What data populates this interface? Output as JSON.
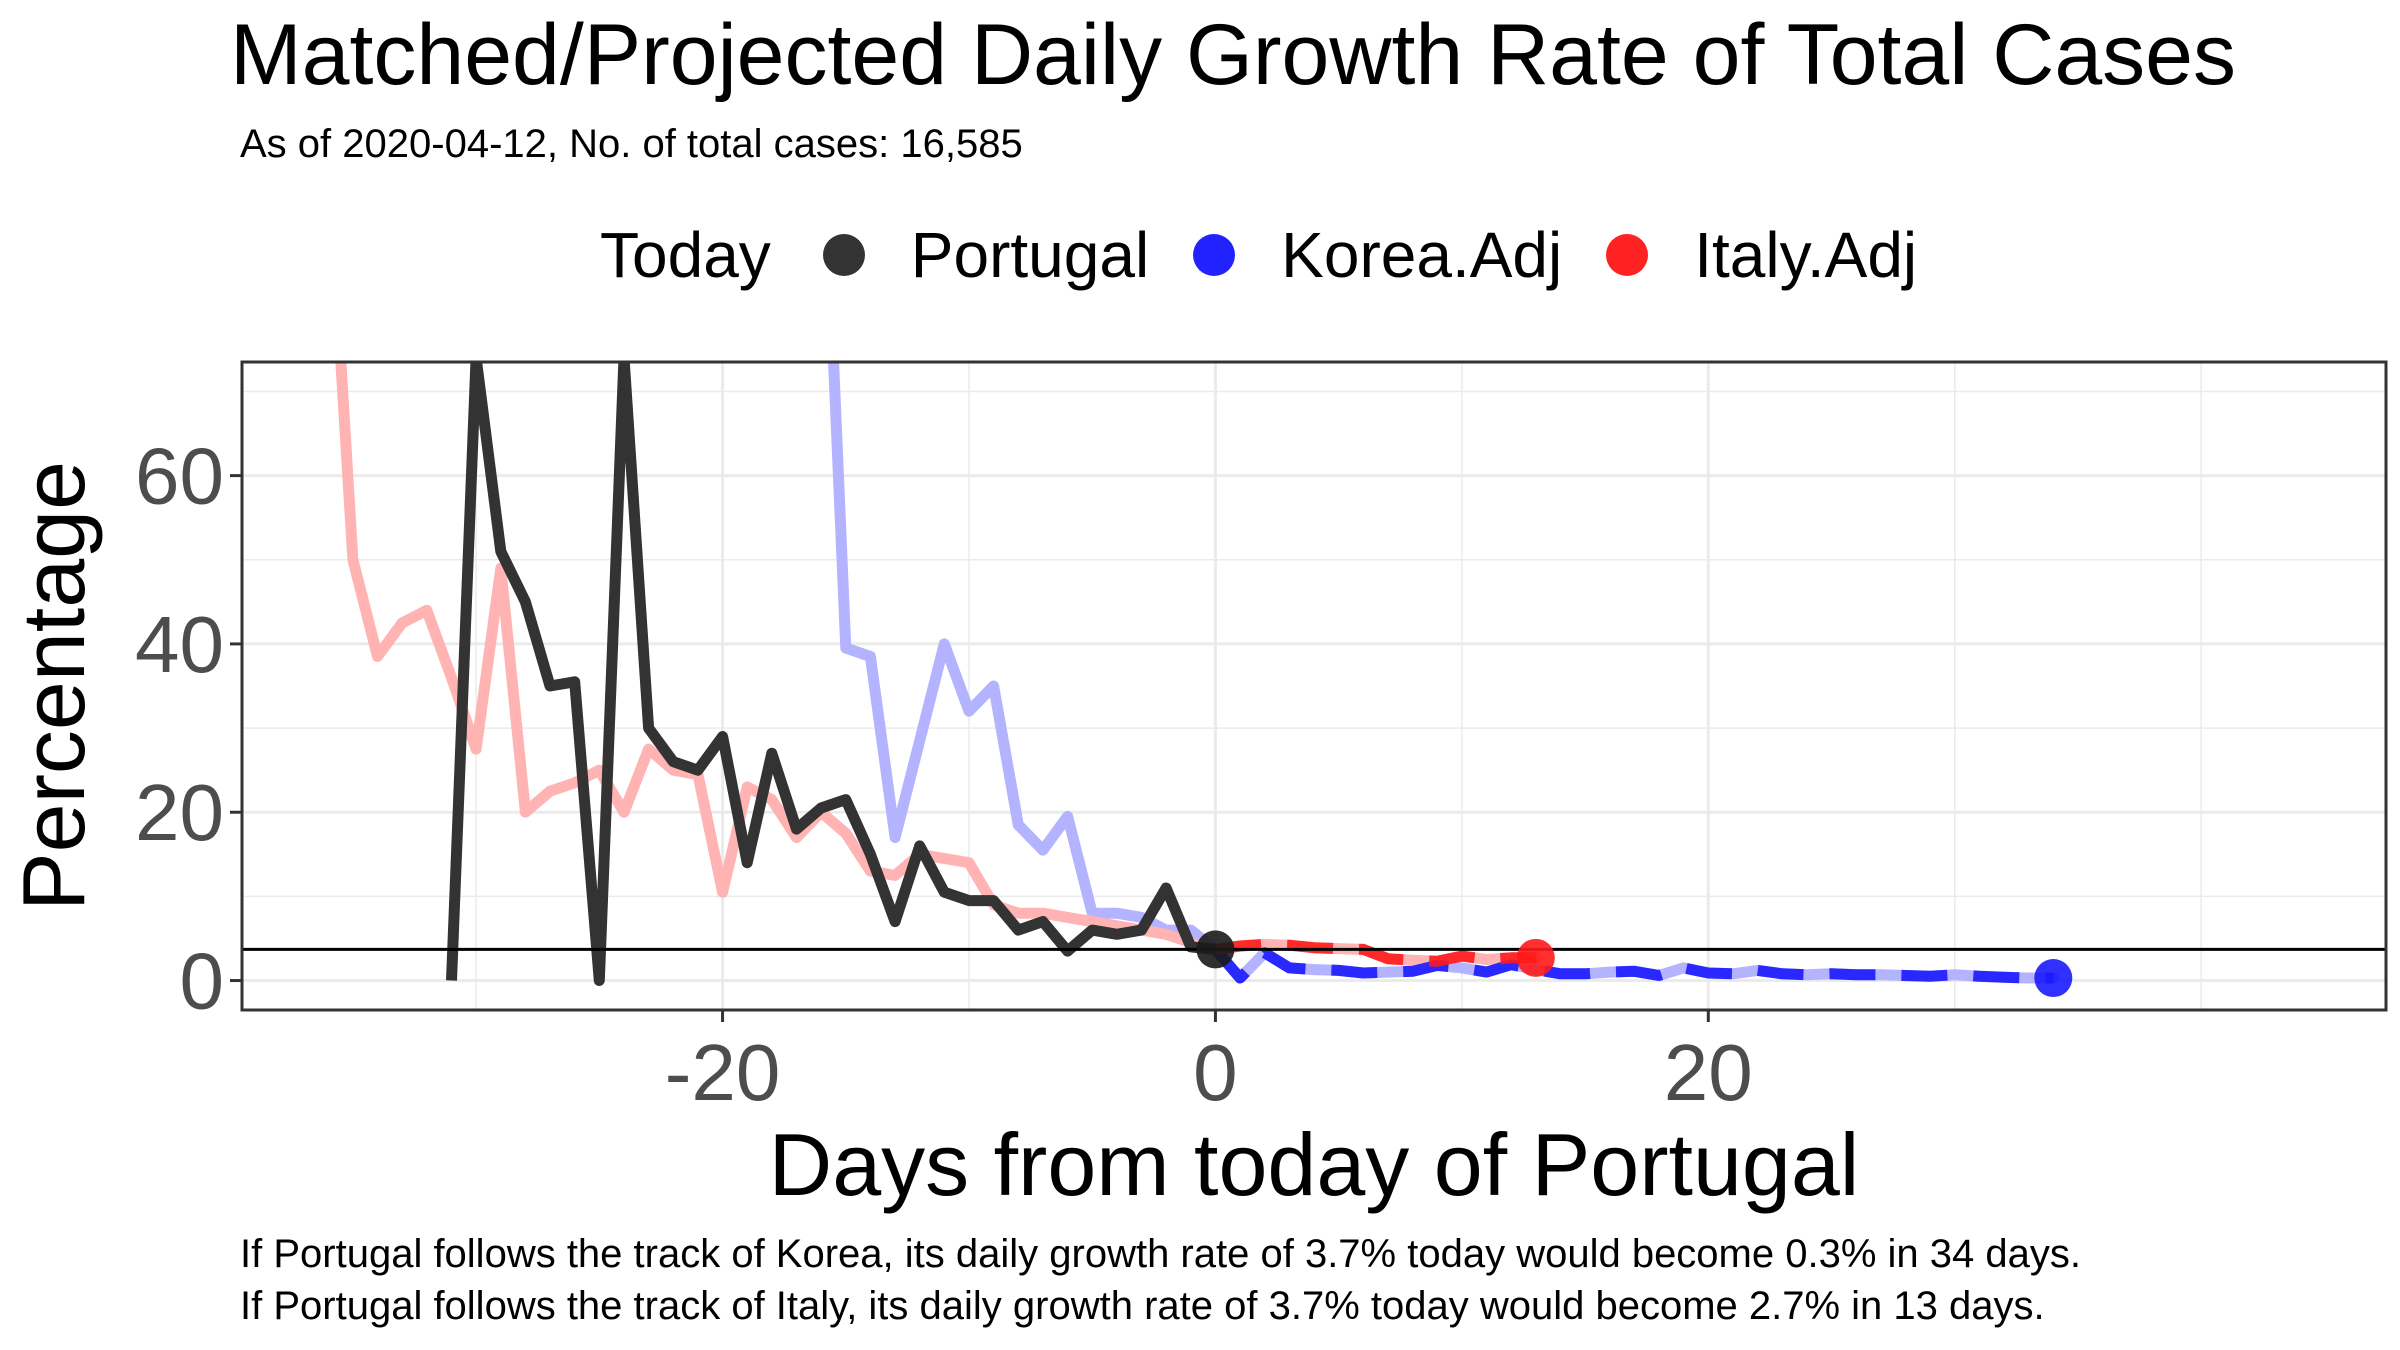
{
  "chart_data": {
    "type": "line",
    "title": "Matched/Projected Daily Growth Rate of Total Cases",
    "subtitle": "As of 2020-04-12, No. of total cases: 16,585",
    "xlabel": "Days from today of Portugal",
    "ylabel": "Percentage",
    "xlim": [
      -39.5,
      47.5
    ],
    "ylim": [
      -3.5,
      73.5
    ],
    "x_ticks": [
      -20,
      0,
      20
    ],
    "y_ticks": [
      0,
      20,
      40,
      60
    ],
    "x_tick_labels": [
      "-20",
      "0",
      "20"
    ],
    "y_tick_labels": [
      "0",
      "20",
      "40",
      "60"
    ],
    "grid": true,
    "legend_title": "Today",
    "legend_position": "top",
    "reference_line_y": 3.7,
    "series": [
      {
        "name": "Portugal",
        "color": "#333333",
        "x": [
          -31,
          -30,
          -29,
          -28,
          -27,
          -26,
          -25,
          -24,
          -23,
          -22,
          -21,
          -20,
          -19,
          -18,
          -17,
          -16,
          -15,
          -14,
          -13,
          -12,
          -11,
          -10,
          -9,
          -8,
          -7,
          -6,
          -5,
          -4,
          -3,
          -2,
          -1,
          0
        ],
        "y": [
          0,
          74,
          51,
          45,
          35,
          35.5,
          0,
          74,
          30,
          26,
          25,
          29,
          14,
          27,
          18,
          20.5,
          21.5,
          15,
          7,
          16,
          10.5,
          9.5,
          9.5,
          6,
          7,
          3.5,
          6,
          5.5,
          6,
          11,
          4,
          3.7
        ]
      },
      {
        "name": "Korea.Adj",
        "color": "#0000ff",
        "x": [
          -15.5,
          -15,
          -14,
          -13,
          -12,
          -11,
          -10,
          -9,
          -8,
          -7,
          -6,
          -5,
          -4,
          -3,
          -2,
          -1,
          0,
          1,
          2,
          3,
          4,
          5,
          6,
          7,
          8,
          9,
          10,
          11,
          12,
          13,
          14,
          15,
          16,
          17,
          18,
          19,
          20,
          21,
          22,
          23,
          24,
          25,
          26,
          27,
          28,
          29,
          30,
          31,
          32,
          33,
          34
        ],
        "y": [
          74,
          39.5,
          38.5,
          17,
          28.5,
          40,
          32,
          35,
          18.5,
          15.5,
          19.5,
          8,
          8,
          7.5,
          6,
          6,
          3.7,
          0.3,
          3.3,
          1.5,
          1.3,
          1.2,
          0.9,
          1,
          1.1,
          1.8,
          1.5,
          1,
          1.9,
          1.3,
          0.8,
          0.8,
          1,
          1.1,
          0.6,
          1.5,
          0.9,
          0.8,
          1.2,
          0.8,
          0.7,
          0.8,
          0.7,
          0.7,
          0.6,
          0.5,
          0.7,
          0.5,
          0.4,
          0.3,
          0.3
        ]
      },
      {
        "name": "Italy.Adj",
        "color": "#ff0000",
        "x": [
          -35.5,
          -35,
          -34,
          -33,
          -32,
          -31,
          -30,
          -29,
          -28,
          -27,
          -26,
          -25,
          -24,
          -23,
          -22,
          -21,
          -20,
          -19,
          -18,
          -17,
          -16,
          -15,
          -14,
          -13,
          -12,
          -11,
          -10,
          -9,
          -8,
          -7,
          -6,
          -5,
          -4,
          -3,
          -2,
          -1,
          0,
          1,
          2,
          3,
          4,
          5,
          6,
          7,
          8,
          9,
          10,
          11,
          12,
          13
        ],
        "y": [
          74,
          50,
          38.5,
          42.5,
          44,
          36,
          27.5,
          49,
          20,
          22.5,
          23.5,
          25,
          20,
          27.5,
          25,
          24.5,
          10.5,
          23,
          21.5,
          17,
          20,
          17.5,
          13,
          12.5,
          15,
          14.5,
          14,
          9,
          8,
          8,
          7.5,
          7,
          6.5,
          6,
          5.5,
          4.5,
          3.7,
          4.1,
          4.3,
          4.2,
          3.9,
          3.8,
          3.7,
          2.6,
          2.4,
          2.3,
          2.9,
          2.5,
          2.7,
          2.7
        ]
      }
    ],
    "today_points": [
      {
        "series": "Portugal",
        "x": 0,
        "y": 3.7
      },
      {
        "series": "Korea.Adj",
        "x": 34,
        "y": 0.3
      },
      {
        "series": "Italy.Adj",
        "x": 13,
        "y": 2.7
      }
    ],
    "projection_start_x": 0,
    "captions": [
      "If Portugal follows the track of Korea, its daily growth rate of 3.7% today would become 0.3% in 34 days.",
      "If Portugal follows the track of Italy, its daily growth rate of 3.7% today would become 2.7% in 13 days."
    ]
  }
}
